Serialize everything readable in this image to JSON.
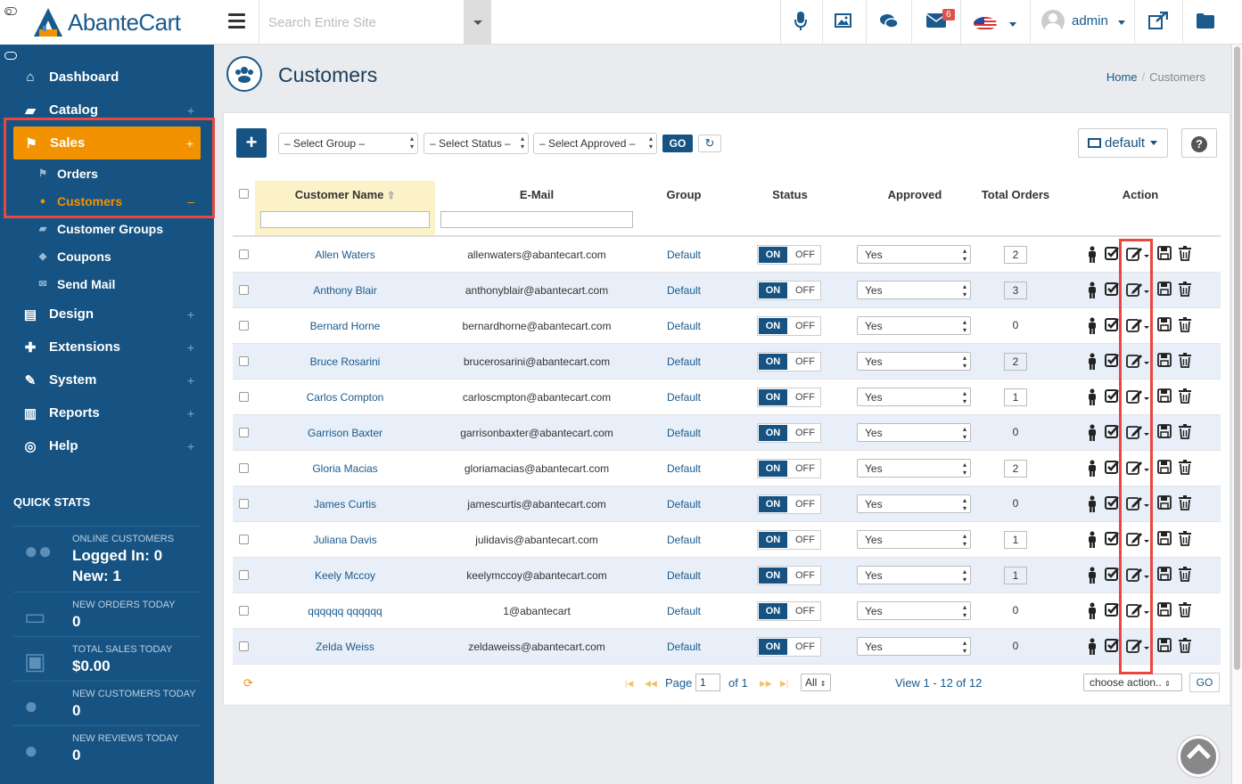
{
  "app": {
    "logo_text": "AbanteCart"
  },
  "sidebar": {
    "nav": [
      {
        "label": "Dashboard",
        "icon": "home-icon",
        "glyph": "⌂"
      },
      {
        "label": "Catalog",
        "icon": "folder-open-icon",
        "glyph": "▰"
      },
      {
        "label": "Sales",
        "icon": "flag-icon",
        "glyph": "⚑"
      },
      {
        "label": "Design",
        "icon": "file-icon",
        "glyph": "▤"
      },
      {
        "label": "Extensions",
        "icon": "puzzle-icon",
        "glyph": "✚"
      },
      {
        "label": "System",
        "icon": "wrench-icon",
        "glyph": "✎"
      },
      {
        "label": "Reports",
        "icon": "bar-chart-icon",
        "glyph": "▥"
      },
      {
        "label": "Help",
        "icon": "life-ring-icon",
        "glyph": "◎"
      }
    ],
    "sales_sub": [
      {
        "label": "Orders"
      },
      {
        "label": "Customers"
      },
      {
        "label": "Customer Groups"
      },
      {
        "label": "Coupons"
      },
      {
        "label": "Send Mail"
      }
    ],
    "quick_stats_title": "QUICK STATS",
    "stats": [
      {
        "label": "ONLINE CUSTOMERS",
        "value": "Logged In: 0",
        "value2": "New: 1"
      },
      {
        "label": "NEW ORDERS TODAY",
        "value": "0"
      },
      {
        "label": "TOTAL SALES TODAY",
        "value": "$0.00"
      },
      {
        "label": "NEW CUSTOMERS TODAY",
        "value": "0"
      },
      {
        "label": "NEW REVIEWS TODAY",
        "value": "0"
      }
    ]
  },
  "topbar": {
    "search_placeholder": "Search Entire Site",
    "mail_badge": "6",
    "user": "admin"
  },
  "header": {
    "title": "Customers",
    "breadcrumb_home": "Home",
    "breadcrumb_current": "Customers"
  },
  "toolbar": {
    "add_label": "+",
    "select_group": "– Select Group –",
    "select_status": "– Select Status –",
    "select_approved": "– Select Approved –",
    "go_label": "GO",
    "default_label": "default",
    "help_label": "?"
  },
  "table": {
    "columns": {
      "name": "Customer Name",
      "email": "E-Mail",
      "group": "Group",
      "status": "Status",
      "approved": "Approved",
      "orders": "Total Orders",
      "action": "Action"
    },
    "switch_on": "ON",
    "switch_off": "OFF",
    "rows": [
      {
        "name": "Allen Waters",
        "email": "allenwaters@abantecart.com",
        "group": "Default",
        "approved": "Yes",
        "orders": "2"
      },
      {
        "name": "Anthony Blair",
        "email": "anthonyblair@abantecart.com",
        "group": "Default",
        "approved": "Yes",
        "orders": "3"
      },
      {
        "name": "Bernard Horne",
        "email": "bernardhorne@abantecart.com",
        "group": "Default",
        "approved": "Yes",
        "orders": "0"
      },
      {
        "name": "Bruce Rosarini",
        "email": "brucerosarini@abantecart.com",
        "group": "Default",
        "approved": "Yes",
        "orders": "2"
      },
      {
        "name": "Carlos Compton",
        "email": "carloscmpton@abantecart.com",
        "group": "Default",
        "approved": "Yes",
        "orders": "1"
      },
      {
        "name": "Garrison Baxter",
        "email": "garrisonbaxter@abantecart.com",
        "group": "Default",
        "approved": "Yes",
        "orders": "0"
      },
      {
        "name": "Gloria Macias",
        "email": "gloriamacias@abantecart.com",
        "group": "Default",
        "approved": "Yes",
        "orders": "2"
      },
      {
        "name": "James Curtis",
        "email": "jamescurtis@abantecart.com",
        "group": "Default",
        "approved": "Yes",
        "orders": "0"
      },
      {
        "name": "Juliana Davis",
        "email": "julidavis@abantecart.com",
        "group": "Default",
        "approved": "Yes",
        "orders": "1"
      },
      {
        "name": "Keely Mccoy",
        "email": "keelymccoy@abantecart.com",
        "group": "Default",
        "approved": "Yes",
        "orders": "1"
      },
      {
        "name": "qqqqqq qqqqqq",
        "email": "1@abantecart",
        "group": "Default",
        "approved": "Yes",
        "orders": "0"
      },
      {
        "name": "Zelda Weiss",
        "email": "zeldaweiss@abantecart.com",
        "group": "Default",
        "approved": "Yes",
        "orders": "0"
      }
    ]
  },
  "pager": {
    "page_label": "Page",
    "page_value": "1",
    "of_label": "of 1",
    "all_label": "All",
    "view_label": "View 1 - 12 of 12",
    "choose_action": "choose action..",
    "go_label": "GO"
  },
  "colors": {
    "sidebar": "#165382",
    "accent": "#f39200",
    "highlight": "#e8483f"
  }
}
